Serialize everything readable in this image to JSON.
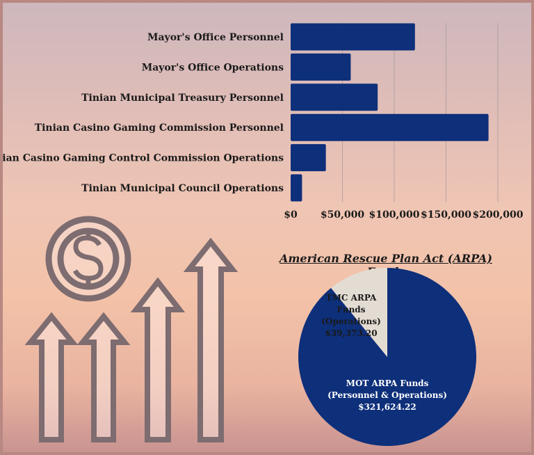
{
  "chart_data": [
    {
      "type": "bar",
      "orientation": "horizontal",
      "categories": [
        "Mayor's Office Personnel",
        "Mayor's Office Operations",
        "Tinian Municipal Treasury Personnel",
        "Tinian Casino Gaming Commission Personnel",
        "Tinian Casino Gaming Control Commission Operations",
        "Tinian Municipal Council Operations"
      ],
      "values": [
        120000,
        58000,
        84000,
        191000,
        34000,
        11000
      ],
      "xlim": [
        0,
        200000
      ],
      "xticks": [
        "$0",
        "$50,000",
        "$100,000",
        "$150,000",
        "$200,000"
      ],
      "tick_values": [
        0,
        50000,
        100000,
        150000,
        200000
      ],
      "grid": true,
      "color": "#0e2f7a"
    },
    {
      "type": "pie",
      "title": "American Rescue Plan Act (ARPA) Funds",
      "slices": [
        {
          "lines": [
            "MOT ARPA Funds",
            "(Personnel & Operations)",
            "$321,624.22"
          ],
          "value": 321624.22,
          "color": "#0e2f7a"
        },
        {
          "lines": [
            "TMC ARPA",
            "Funds",
            "(Operations)",
            "$39,373.20"
          ],
          "value": 39373.2,
          "color": "#e3dcd3"
        }
      ]
    }
  ],
  "decor": {
    "icons": [
      "dollar-coin-icon",
      "growth-arrows-icon"
    ],
    "icon_color": "#7d6c70"
  }
}
